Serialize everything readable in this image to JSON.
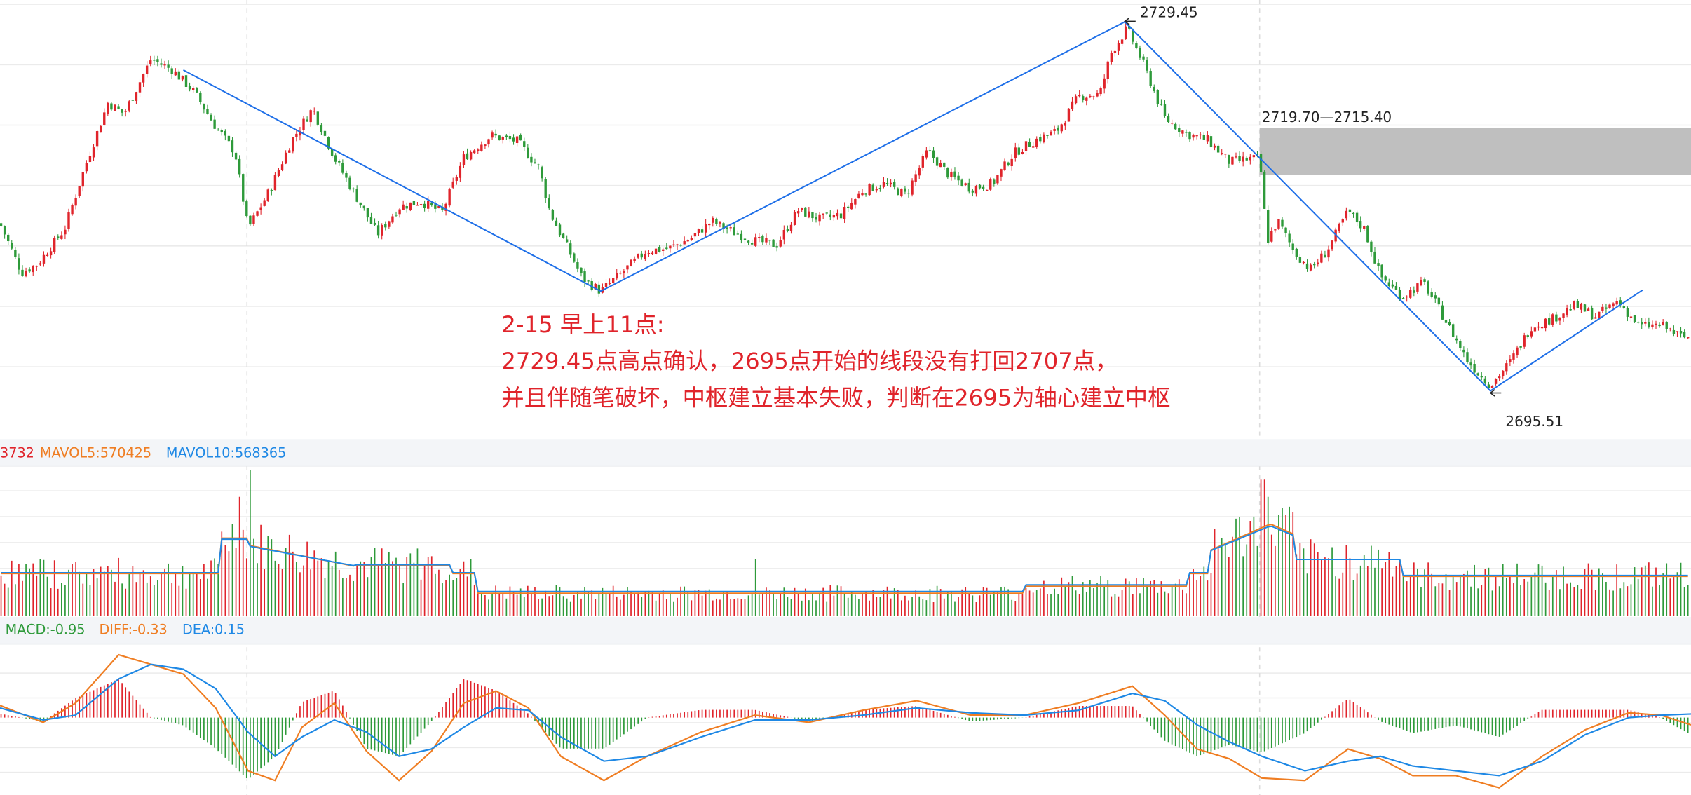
{
  "colors": {
    "up": "#e0242b",
    "down": "#2e9a3a",
    "trend_line": "#1e6fe8",
    "mavol5": "#ef7d22",
    "mavol10": "#1e88e5",
    "diff": "#ef7d22",
    "dea": "#1e88e5",
    "zone": "#bfbfbf",
    "annotation": "#e0242b",
    "grid": "#ebebeb",
    "panel_header": "#f3f5f8"
  },
  "price_panel": {
    "labels": {
      "high": "2729.45",
      "low": "2695.51",
      "zone": "2719.70—2715.40"
    },
    "annotation_lines": [
      "2-15 早上11点:",
      "2729.45点高点确认，2695点开始的线段没有打回2707点，",
      "并且伴随笔破坏，中枢建立基本失败，判断在2695为轴心建立中枢"
    ]
  },
  "volume_panel": {
    "header_truncated": "3732",
    "mavol5_label": "MAVOL5:570425",
    "mavol10_label": "MAVOL10:568365"
  },
  "macd_panel": {
    "macd_label": "MACD:-0.95",
    "diff_label": "DIFF:-0.33",
    "dea_label": "DEA:0.15"
  },
  "chart_data": [
    {
      "type": "candlestick",
      "ylim": [
        2691.5,
        2731.0
      ],
      "close_path_x": [
        0,
        20,
        35,
        60,
        80,
        100,
        115,
        140,
        160,
        180,
        200,
        218,
        230,
        250,
        270,
        290,
        310,
        330,
        350,
        370,
        390,
        410,
        430,
        455,
        480,
        500,
        510,
        520,
        530,
        540,
        557,
        580,
        600,
        620,
        640,
        660,
        680,
        700,
        720,
        740,
        760,
        780,
        800,
        820,
        840,
        860,
        880,
        900,
        920,
        940,
        960,
        980,
        1000,
        1020,
        1030,
        1045,
        1060,
        1080,
        1100,
        1120,
        1140,
        1160,
        1168,
        1175,
        1185,
        1200,
        1215,
        1230,
        1250,
        1265,
        1280,
        1300,
        1320,
        1340,
        1360,
        1370,
        1382,
        1400,
        1420,
        1440,
        1460,
        1480,
        1500,
        1520,
        1540,
        1560
      ],
      "close_path_y": [
        2711.0,
        2706.5,
        2707.3,
        2710.5,
        2716.5,
        2722.0,
        2721.0,
        2726.0,
        2725.0,
        2723.0,
        2719.8,
        2717.5,
        2710.5,
        2714.0,
        2718.5,
        2721.5,
        2717.0,
        2713.5,
        2710.0,
        2712.5,
        2713.0,
        2712.0,
        2717.0,
        2719.0,
        2718.5,
        2716.0,
        2712.0,
        2710.0,
        2708.0,
        2706.0,
        2704.8,
        2706.8,
        2708.5,
        2708.7,
        2709.6,
        2711.2,
        2710.2,
        2709.4,
        2709.0,
        2712.2,
        2711.4,
        2711.8,
        2714.0,
        2714.6,
        2713.6,
        2717.6,
        2715.4,
        2714.2,
        2714.6,
        2717.4,
        2718.6,
        2719.4,
        2722.6,
        2722.8,
        2726.5,
        2728.8,
        2725.6,
        2720.6,
        2719.2,
        2718.6,
        2716.6,
        2716.9,
        2716.9,
        2709.4,
        2711.2,
        2708.4,
        2706.8,
        2708.4,
        2712.1,
        2710.5,
        2706.2,
        2704.3,
        2705.6,
        2702.2,
        2698.6,
        2697.4,
        2696.2,
        2698.3,
        2701.6,
        2702.3,
        2703.5,
        2702.5,
        2703.9,
        2701.6,
        2701.7,
        2700.6
      ],
      "high_label": 2729.45,
      "low_label": 2695.51,
      "zone": [
        2715.4,
        2719.7
      ],
      "segment_points": [
        {
          "x": 170,
          "y": 2725.0
        },
        {
          "x": 557,
          "y": 2704.8
        },
        {
          "x": 1043,
          "y": 2729.4
        },
        {
          "x": 1382,
          "y": 2695.7
        },
        {
          "x": 1523,
          "y": 2704.9
        }
      ]
    },
    {
      "type": "bar",
      "series": [
        {
          "name": "MAVOL5",
          "ref": "MAVOL5:570425"
        },
        {
          "name": "MAVOL10",
          "ref": "MAVOL10:568365"
        }
      ]
    },
    {
      "type": "bar",
      "series": [
        {
          "name": "MACD",
          "ref": "MACD:-0.95"
        },
        {
          "name": "DIFF",
          "ref": "DIFF:-0.33"
        },
        {
          "name": "DEA",
          "ref": "DEA:0.15"
        }
      ],
      "diff_x": [
        0,
        40,
        70,
        110,
        140,
        170,
        200,
        230,
        255,
        280,
        310,
        340,
        370,
        400,
        430,
        460,
        490,
        520,
        560,
        600,
        650,
        700,
        750,
        800,
        850,
        900,
        950,
        1000,
        1050,
        1080,
        1110,
        1140,
        1170,
        1210,
        1250,
        1280,
        1310,
        1350,
        1390,
        1430,
        1470,
        1510,
        1540,
        1568
      ],
      "diff_y": [
        0.5,
        -0.2,
        0.6,
        2.6,
        2.2,
        1.8,
        0.4,
        -2.2,
        -2.6,
        -0.4,
        0.6,
        -1.4,
        -2.6,
        -1.4,
        0.6,
        1.1,
        0.4,
        -1.6,
        -2.6,
        -1.6,
        -0.6,
        0.1,
        -0.2,
        0.3,
        0.7,
        0.1,
        0.1,
        0.6,
        1.3,
        0.1,
        -1.3,
        -1.7,
        -2.5,
        -2.6,
        -1.3,
        -1.7,
        -2.4,
        -2.4,
        -2.9,
        -1.6,
        -0.5,
        0.2,
        0.1,
        -0.3
      ],
      "dea_x": [
        0,
        40,
        70,
        110,
        140,
        170,
        200,
        230,
        255,
        280,
        310,
        340,
        370,
        400,
        430,
        460,
        490,
        520,
        560,
        600,
        650,
        700,
        750,
        800,
        850,
        900,
        950,
        1000,
        1050,
        1080,
        1110,
        1140,
        1170,
        1210,
        1250,
        1280,
        1310,
        1350,
        1390,
        1430,
        1470,
        1510,
        1540,
        1568
      ],
      "dea_y": [
        0.4,
        -0.1,
        0.1,
        1.6,
        2.2,
        2.0,
        1.2,
        -0.6,
        -1.6,
        -0.8,
        -0.1,
        -0.6,
        -1.6,
        -1.3,
        -0.4,
        0.4,
        0.3,
        -0.8,
        -1.8,
        -1.6,
        -0.8,
        -0.1,
        -0.1,
        0.1,
        0.4,
        0.2,
        0.1,
        0.3,
        1.0,
        0.7,
        -0.3,
        -1.0,
        -1.6,
        -2.2,
        -1.8,
        -1.6,
        -2.0,
        -2.2,
        -2.4,
        -1.8,
        -0.7,
        0.0,
        0.1,
        0.15
      ]
    }
  ]
}
